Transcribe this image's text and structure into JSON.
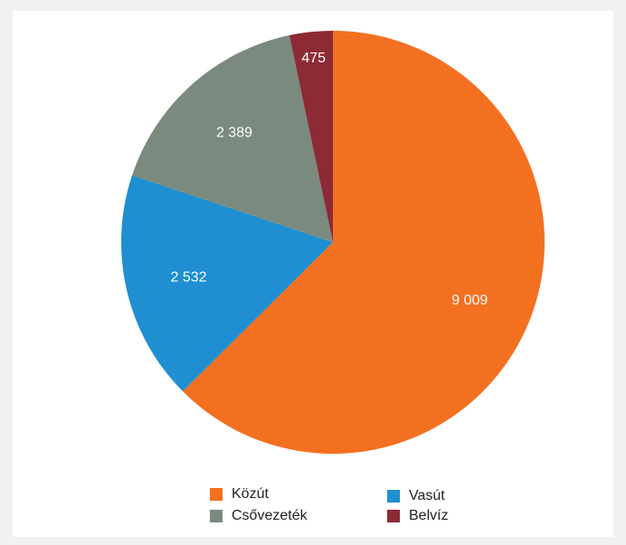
{
  "chart_data": {
    "type": "pie",
    "title": "",
    "categories": [
      "Közút",
      "Vasút",
      "Csővezeték",
      "Belvíz"
    ],
    "values": [
      9009,
      2532,
      2389,
      475
    ],
    "value_labels": [
      "9 009",
      "2 532",
      "2 389",
      "475"
    ],
    "colors": [
      "#f37021",
      "#1f8fd1",
      "#7a8a7f",
      "#8c2a35"
    ],
    "start_angle_deg": 0,
    "direction": "clockwise",
    "legend": "bottom",
    "grid": false
  },
  "legend": {
    "items": [
      {
        "label": "Közút",
        "color": "#f37021"
      },
      {
        "label": "Vasút",
        "color": "#1f8fd1"
      },
      {
        "label": "Csővezeték",
        "color": "#7a8a7f"
      },
      {
        "label": "Belvíz",
        "color": "#8c2a35"
      }
    ]
  }
}
